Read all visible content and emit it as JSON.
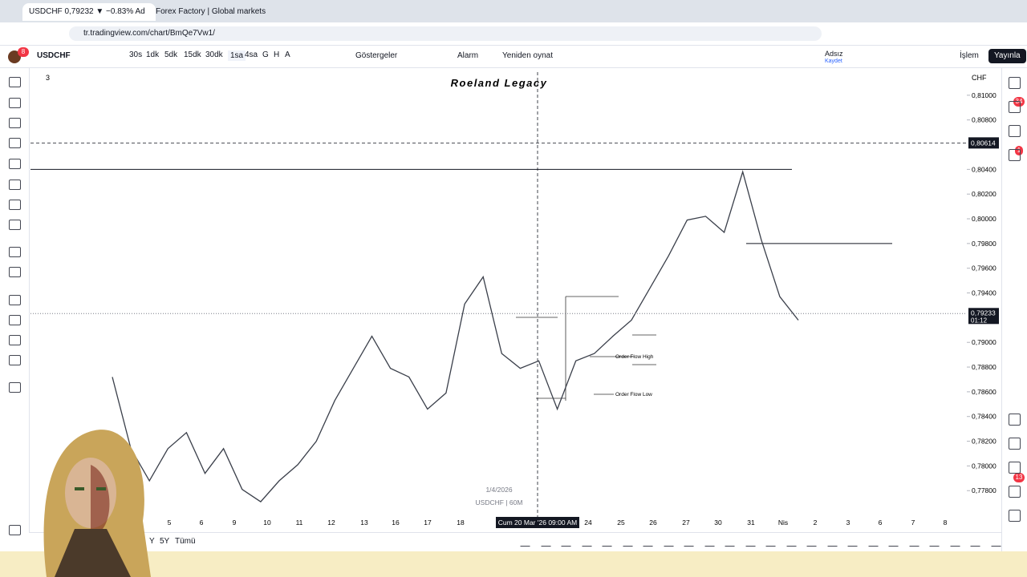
{
  "browser": {
    "tabs": [
      "USDCHF 0,79232 ▼ −0.83% Ad",
      "Forex Factory | Global markets"
    ],
    "url": "tr.tradingview.com/chart/BmQe7Vw1/",
    "avatar_badge": "8"
  },
  "toolbar": {
    "symbol": "USDCHF",
    "intervals": [
      "30s",
      "1dk",
      "5dk",
      "15dk",
      "30dk",
      "1sa",
      "4sa",
      "G",
      "H",
      "A"
    ],
    "indicators": "Göstergeler",
    "alarm": "Alarm",
    "replay": "Yeniden oynat",
    "layout_name": "Adsız",
    "layout_saved": "Kaydet",
    "trade": "İşlem",
    "publish": "Yayınla"
  },
  "chart": {
    "watermark": "Roeland Legacy",
    "legend_count": "3",
    "currency": "CHF",
    "ylim": [
      0.812,
      0.7762
    ],
    "yticks": [
      {
        "value": 0.81,
        "label": "0,81000"
      },
      {
        "value": 0.808,
        "label": "0,80800"
      },
      {
        "value": 0.804,
        "label": "0,80400"
      },
      {
        "value": 0.802,
        "label": "0,80200"
      },
      {
        "value": 0.8,
        "label": "0,80000"
      },
      {
        "value": 0.798,
        "label": "0,79800"
      },
      {
        "value": 0.796,
        "label": "0,79600"
      },
      {
        "value": 0.794,
        "label": "0,79400"
      },
      {
        "value": 0.79,
        "label": "0,79000"
      },
      {
        "value": 0.788,
        "label": "0,78800"
      },
      {
        "value": 0.786,
        "label": "0,78600"
      },
      {
        "value": 0.784,
        "label": "0,78400"
      },
      {
        "value": 0.782,
        "label": "0,78200"
      },
      {
        "value": 0.78,
        "label": "0,78000"
      },
      {
        "value": 0.778,
        "label": "0,77800"
      }
    ],
    "crosshair_price": {
      "value": 0.80614,
      "label": "0,80614"
    },
    "last_price": {
      "value": 0.79233,
      "label": "0,79233"
    },
    "countdown": "01:12",
    "crosshair_time": "Cum 20 Mar '26   09:00 AM",
    "xlabels": [
      "5",
      "6",
      "9",
      "10",
      "11",
      "12",
      "13",
      "16",
      "17",
      "18",
      "24",
      "25",
      "26",
      "27",
      "30",
      "31",
      "Nis",
      "2",
      "3",
      "6",
      "7",
      "8"
    ],
    "levels": [
      0.804,
      0.798
    ],
    "price_path": [
      0.7872,
      0.7814,
      0.7788,
      0.7814,
      0.7827,
      0.7794,
      0.7814,
      0.7781,
      0.7771,
      0.7788,
      0.7801,
      0.782,
      0.7853,
      0.7879,
      0.7905,
      0.7879,
      0.7872,
      0.7846,
      0.7859,
      0.7931,
      0.7953,
      0.7891,
      0.7879,
      0.7885,
      0.7846,
      0.7885,
      0.7891,
      0.7905,
      0.7918,
      0.7944,
      0.797,
      0.7999,
      0.8002,
      0.7989,
      0.8038,
      0.7983,
      0.7937,
      0.7918
    ],
    "annotations": {
      "order_flow_high": "Order Flow High",
      "order_flow_low": "Order Flow Low",
      "date_stamp": "1/4/2026",
      "symbol_stamp": "USDCHF | 60M"
    }
  },
  "sidebar_badges": [
    "34",
    "1",
    "13"
  ],
  "bottom_bar": {
    "ranges": [
      "Y",
      "5Y",
      "Tümü"
    ]
  }
}
